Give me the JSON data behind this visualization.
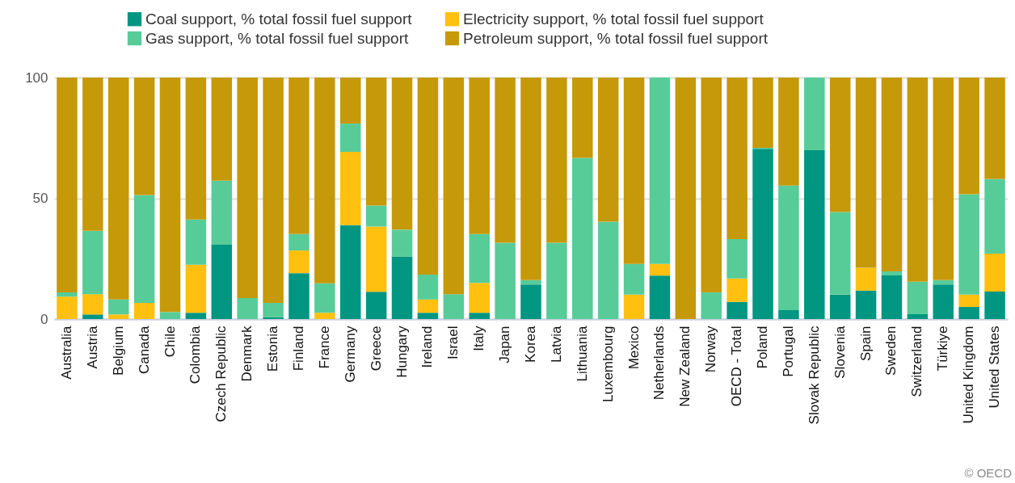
{
  "chart_data": {
    "type": "bar",
    "stacked": true,
    "legend": "top",
    "grid": "y",
    "categories": [
      "Australia",
      "Austria",
      "Belgium",
      "Canada",
      "Chile",
      "Colombia",
      "Czech Republic",
      "Denmark",
      "Estonia",
      "Finland",
      "France",
      "Germany",
      "Greece",
      "Hungary",
      "Ireland",
      "Israel",
      "Italy",
      "Japan",
      "Korea",
      "Latvia",
      "Lithuania",
      "Luxembourg",
      "Mexico",
      "Netherlands",
      "New Zealand",
      "Norway",
      "OECD - Total",
      "Poland",
      "Portugal",
      "Slovak Republic",
      "Slovenia",
      "Spain",
      "Sweden",
      "Switzerland",
      "Türkiye",
      "United Kingdom",
      "United States"
    ],
    "series": [
      {
        "name": "Coal support, % total fossil fuel support",
        "color": "#009681",
        "values": [
          0,
          1.9,
          0,
          0,
          0,
          2.6,
          30.8,
          0,
          0.7,
          19.0,
          0,
          38.9,
          11.3,
          25.9,
          2.6,
          0,
          2.6,
          0,
          14.3,
          0,
          0,
          0,
          0,
          18.0,
          0,
          0,
          7.1,
          70.5,
          3.7,
          69.9,
          10.1,
          11.8,
          18.1,
          2.0,
          14.3,
          5.0,
          11.4
        ]
      },
      {
        "name": "Electricity support, % total fossil fuel support",
        "color": "#ffc00f",
        "values": [
          9.3,
          8.4,
          1.9,
          6.7,
          0,
          19.9,
          0,
          0,
          0,
          9.4,
          2.6,
          30.3,
          27.0,
          0,
          5.5,
          0,
          12.4,
          0,
          0,
          0,
          0,
          0,
          10.1,
          4.8,
          0,
          0,
          9.7,
          0,
          0,
          0,
          0,
          9.4,
          0,
          0,
          0,
          5.1,
          15.7
        ]
      },
      {
        "name": "Gas support, % total fossil fuel support",
        "color": "#57cc99",
        "values": [
          1.7,
          26.2,
          6.2,
          44.6,
          2.9,
          18.7,
          26.5,
          8.7,
          6.0,
          6.8,
          12.2,
          11.7,
          8.7,
          11.1,
          10.3,
          10.3,
          20.2,
          31.6,
          1.8,
          31.6,
          66.7,
          40.3,
          12.7,
          77.2,
          0,
          11.0,
          16.3,
          0.4,
          51.6,
          30.1,
          34.2,
          0,
          1.6,
          13.5,
          1.8,
          41.6,
          30.9
        ]
      },
      {
        "name": "Petroleum support, % total fossil fuel support",
        "color": "#c5990a",
        "values": [
          89.0,
          63.5,
          91.9,
          48.7,
          97.1,
          58.8,
          42.7,
          91.3,
          93.3,
          64.8,
          85.2,
          19.1,
          53.0,
          63.0,
          81.6,
          89.7,
          64.8,
          68.4,
          83.9,
          68.4,
          33.3,
          59.7,
          77.2,
          0,
          100,
          89.0,
          66.9,
          29.1,
          44.7,
          0,
          55.7,
          78.8,
          80.3,
          84.5,
          83.9,
          48.3,
          42.0
        ]
      }
    ],
    "ylim": [
      0,
      100
    ],
    "yticks": [
      0,
      50,
      100
    ],
    "annotations": [
      "© OECD"
    ]
  }
}
